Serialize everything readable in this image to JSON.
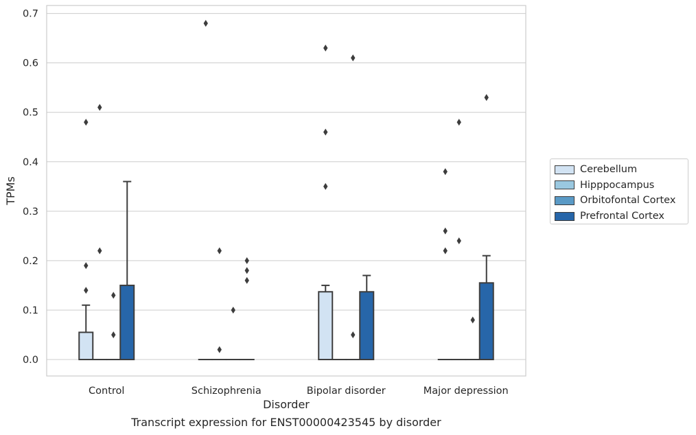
{
  "chart_data": {
    "type": "boxplot",
    "title": "",
    "xlabel": "Disorder",
    "ylabel": "TPMs",
    "ylim": [
      -0.033,
      0.715
    ],
    "yticks": [
      "0.0",
      "0.1",
      "0.2",
      "0.3",
      "0.4",
      "0.5",
      "0.6",
      "0.7"
    ],
    "grid": true,
    "legend_position": "right",
    "categories": [
      "Control",
      "Schizophrenia",
      "Bipolar disorder",
      "Major depression"
    ],
    "series": [
      {
        "name": "Cerebellum",
        "color": "#d2e3f3",
        "boxes": [
          {
            "q1": 0,
            "median": 0,
            "q3": 0.055,
            "whisker_low": 0,
            "whisker_high": 0.11,
            "outliers": [
              0.48,
              0.19,
              0.14
            ]
          },
          {
            "q1": 0,
            "median": 0,
            "q3": 0,
            "whisker_low": 0,
            "whisker_high": 0,
            "outliers": [
              0.68
            ]
          },
          {
            "q1": 0,
            "median": 0,
            "q3": 0.137,
            "whisker_low": 0,
            "whisker_high": 0.15,
            "outliers": [
              0.63,
              0.46,
              0.35
            ]
          },
          {
            "q1": 0,
            "median": 0,
            "q3": 0,
            "whisker_low": 0,
            "whisker_high": 0,
            "outliers": [
              0.38,
              0.26,
              0.22
            ]
          }
        ]
      },
      {
        "name": "Hipppocampus",
        "color": "#9ac8e0",
        "boxes": [
          {
            "q1": 0,
            "median": 0,
            "q3": 0,
            "whisker_low": 0,
            "whisker_high": 0,
            "outliers": [
              0.51,
              0.22
            ]
          },
          {
            "q1": 0,
            "median": 0,
            "q3": 0,
            "whisker_low": 0,
            "whisker_high": 0,
            "outliers": [
              0.22,
              0.02
            ]
          },
          {
            "q1": 0,
            "median": 0,
            "q3": 0,
            "whisker_low": 0,
            "whisker_high": 0,
            "outliers": []
          },
          {
            "q1": 0,
            "median": 0,
            "q3": 0,
            "whisker_low": 0,
            "whisker_high": 0,
            "outliers": [
              0.48,
              0.24
            ]
          }
        ]
      },
      {
        "name": "Orbitofontal Cortex",
        "color": "#5a9ac6",
        "boxes": [
          {
            "q1": 0,
            "median": 0,
            "q3": 0,
            "whisker_low": 0,
            "whisker_high": 0,
            "outliers": [
              0.13,
              0.05
            ]
          },
          {
            "q1": 0,
            "median": 0,
            "q3": 0,
            "whisker_low": 0,
            "whisker_high": 0,
            "outliers": [
              0.1
            ]
          },
          {
            "q1": 0,
            "median": 0,
            "q3": 0,
            "whisker_low": 0,
            "whisker_high": 0,
            "outliers": [
              0.61,
              0.05
            ]
          },
          {
            "q1": 0,
            "median": 0,
            "q3": 0,
            "whisker_low": 0,
            "whisker_high": 0,
            "outliers": [
              0.08
            ]
          }
        ]
      },
      {
        "name": "Prefrontal Cortex",
        "color": "#2766a9",
        "boxes": [
          {
            "q1": 0,
            "median": 0,
            "q3": 0.15,
            "whisker_low": 0,
            "whisker_high": 0.36,
            "outliers": []
          },
          {
            "q1": 0,
            "median": 0,
            "q3": 0,
            "whisker_low": 0,
            "whisker_high": 0,
            "outliers": [
              0.2,
              0.18,
              0.16
            ]
          },
          {
            "q1": 0,
            "median": 0,
            "q3": 0.137,
            "whisker_low": 0,
            "whisker_high": 0.17,
            "outliers": []
          },
          {
            "q1": 0,
            "median": 0,
            "q3": 0.155,
            "whisker_low": 0,
            "whisker_high": 0.21,
            "outliers": [
              0.53
            ]
          }
        ]
      }
    ]
  },
  "caption": "Transcript expression for ENST00000423545 by disorder"
}
